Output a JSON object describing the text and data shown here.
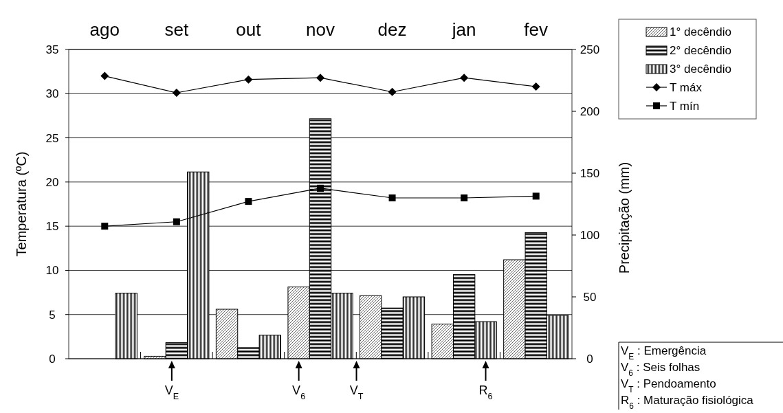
{
  "chart_data": {
    "type": "bar",
    "categories": [
      "ago",
      "set",
      "out",
      "nov",
      "dez",
      "jan",
      "fev"
    ],
    "ylabel": "Temperatura (ºC)",
    "y2label": "Precipitação (mm)",
    "ylim": [
      0,
      35
    ],
    "yticks": [
      0,
      5,
      10,
      15,
      20,
      25,
      30,
      35
    ],
    "y2lim": [
      0,
      250
    ],
    "y2ticks": [
      0,
      50,
      100,
      150,
      200,
      250
    ],
    "grid": "y",
    "legend": "top right",
    "series": [
      {
        "name": "1° decêndio",
        "axis": "y2",
        "color": "#000000",
        "values": [
          null,
          2,
          40,
          58,
          51,
          28,
          80
        ]
      },
      {
        "name": "2° decêndio",
        "axis": "y2",
        "color": "#000000",
        "values": [
          null,
          13,
          9,
          194,
          41,
          68,
          102
        ]
      },
      {
        "name": "3° decêndio",
        "axis": "y2",
        "color": "#000000",
        "values": [
          53,
          151,
          19,
          53,
          50,
          30,
          35
        ]
      },
      {
        "name": "T máx",
        "type": "line",
        "axis": "y",
        "color": "#000000",
        "marker": "diamond",
        "values": [
          32,
          30.1,
          31.6,
          31.8,
          30.2,
          31.8,
          30.8
        ]
      },
      {
        "name": "T mín",
        "type": "line",
        "axis": "y",
        "color": "#000000",
        "marker": "square",
        "values": [
          15,
          15.5,
          17.8,
          19.3,
          18.2,
          18.2,
          18.4
        ]
      }
    ],
    "annotations": [
      "V$_{E}$",
      "V$_{6}$",
      "V$_{T}$",
      "R$_{6}$",
      "V$_{E}$ : Emergência",
      "V$_{6}$ : Seis folhas",
      "V$_{T}$ : Pendoamento",
      "R$_{6}$ : Maturação fisiológica"
    ]
  }
}
